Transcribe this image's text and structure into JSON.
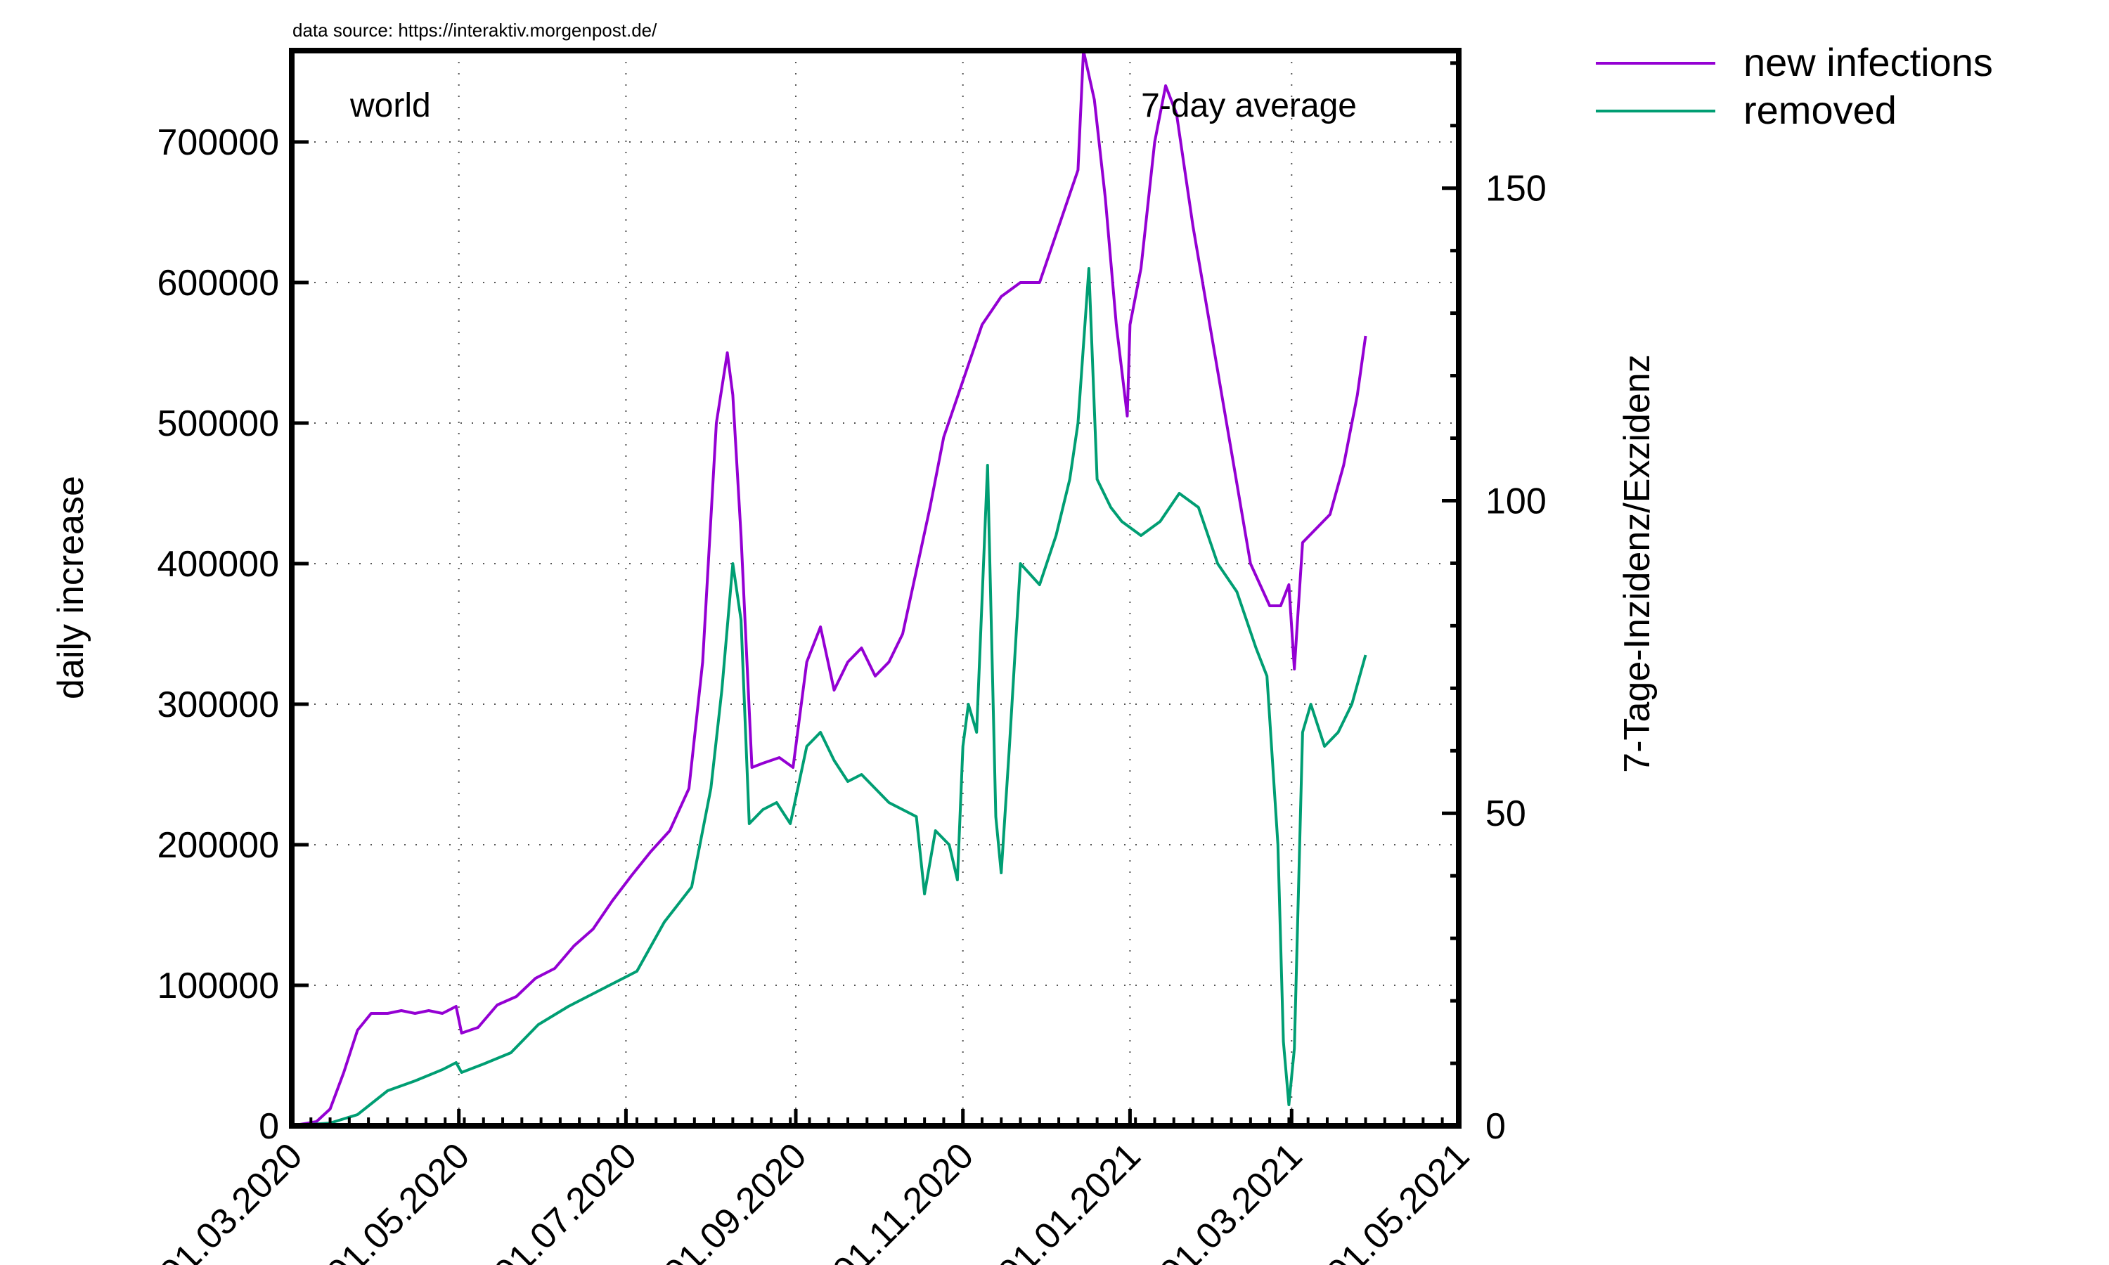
{
  "source_note": "data source: https://interaktiv.morgenpost.de/",
  "chart_data": {
    "type": "line",
    "region_label": "world",
    "average_label": "7-day average",
    "ylabel": "daily increase",
    "y2label": "7-Tage-Inzidenz/Exzidenz",
    "ylim": [
      0,
      765000
    ],
    "y2lim": [
      0,
      172
    ],
    "yticks": [
      0,
      100000,
      200000,
      300000,
      400000,
      500000,
      600000,
      700000
    ],
    "y2ticks": [
      0,
      50,
      100,
      150
    ],
    "xlim": [
      "01.03.2020",
      "01.05.2021"
    ],
    "xticks": [
      "01.03.2020",
      "01.05.2020",
      "01.07.2020",
      "01.09.2020",
      "01.11.2020",
      "01.01.2021",
      "01.03.2021",
      "01.05.2021"
    ],
    "grid": true,
    "legend_position": "outside top-right",
    "series": [
      {
        "name": "new infections",
        "color": "#9400d3",
        "x": [
          "2020-03-01",
          "2020-03-10",
          "2020-03-15",
          "2020-03-20",
          "2020-03-25",
          "2020-03-30",
          "2020-04-05",
          "2020-04-10",
          "2020-04-15",
          "2020-04-20",
          "2020-04-25",
          "2020-04-30",
          "2020-05-02",
          "2020-05-08",
          "2020-05-15",
          "2020-05-22",
          "2020-05-29",
          "2020-06-05",
          "2020-06-12",
          "2020-06-19",
          "2020-06-26",
          "2020-07-03",
          "2020-07-10",
          "2020-07-17",
          "2020-07-24",
          "2020-07-29",
          "2020-08-03",
          "2020-08-07",
          "2020-08-09",
          "2020-08-12",
          "2020-08-16",
          "2020-08-20",
          "2020-08-26",
          "2020-08-31",
          "2020-09-05",
          "2020-09-10",
          "2020-09-15",
          "2020-09-20",
          "2020-09-25",
          "2020-09-30",
          "2020-10-05",
          "2020-10-10",
          "2020-10-15",
          "2020-10-20",
          "2020-10-25",
          "2020-11-01",
          "2020-11-08",
          "2020-11-15",
          "2020-11-22",
          "2020-11-29",
          "2020-12-06",
          "2020-12-13",
          "2020-12-15",
          "2020-12-19",
          "2020-12-23",
          "2020-12-27",
          "2020-12-31",
          "2021-01-01",
          "2021-01-05",
          "2021-01-10",
          "2021-01-14",
          "2021-01-18",
          "2021-01-24",
          "2021-01-31",
          "2021-02-07",
          "2021-02-14",
          "2021-02-21",
          "2021-02-25",
          "2021-02-28",
          "2021-03-02",
          "2021-03-05",
          "2021-03-10",
          "2021-03-15",
          "2021-03-20",
          "2021-03-25",
          "2021-03-28"
        ],
        "values": [
          0,
          3000,
          12000,
          38000,
          68000,
          80000,
          80000,
          82000,
          80000,
          82000,
          80000,
          85000,
          66000,
          70000,
          86000,
          92000,
          105000,
          112000,
          128000,
          140000,
          160000,
          178000,
          195000,
          210000,
          240000,
          330000,
          500000,
          550000,
          520000,
          420000,
          255000,
          258000,
          262000,
          255000,
          330000,
          355000,
          310000,
          330000,
          340000,
          320000,
          330000,
          350000,
          395000,
          440000,
          490000,
          530000,
          570000,
          590000,
          600000,
          600000,
          640000,
          680000,
          765000,
          730000,
          660000,
          570000,
          505000,
          570000,
          610000,
          700000,
          740000,
          720000,
          640000,
          560000,
          480000,
          400000,
          370000,
          370000,
          385000,
          325000,
          415000,
          425000,
          435000,
          470000,
          520000,
          562000
        ]
      },
      {
        "name": "removed",
        "color": "#009e73",
        "x": [
          "2020-03-01",
          "2020-03-15",
          "2020-03-25",
          "2020-04-05",
          "2020-04-15",
          "2020-04-25",
          "2020-04-30",
          "2020-05-02",
          "2020-05-10",
          "2020-05-20",
          "2020-05-30",
          "2020-06-10",
          "2020-06-20",
          "2020-06-30",
          "2020-07-05",
          "2020-07-15",
          "2020-07-25",
          "2020-08-01",
          "2020-08-05",
          "2020-08-09",
          "2020-08-12",
          "2020-08-15",
          "2020-08-20",
          "2020-08-25",
          "2020-08-30",
          "2020-09-05",
          "2020-09-10",
          "2020-09-15",
          "2020-09-20",
          "2020-09-25",
          "2020-09-30",
          "2020-10-05",
          "2020-10-10",
          "2020-10-15",
          "2020-10-18",
          "2020-10-22",
          "2020-10-27",
          "2020-10-30",
          "2020-11-01",
          "2020-11-03",
          "2020-11-06",
          "2020-11-10",
          "2020-11-13",
          "2020-11-15",
          "2020-11-18",
          "2020-11-22",
          "2020-11-29",
          "2020-12-05",
          "2020-12-10",
          "2020-12-13",
          "2020-12-17",
          "2020-12-20",
          "2020-12-25",
          "2020-12-29",
          "2021-01-05",
          "2021-01-12",
          "2021-01-19",
          "2021-01-26",
          "2021-02-02",
          "2021-02-09",
          "2021-02-16",
          "2021-02-20",
          "2021-02-24",
          "2021-02-26",
          "2021-02-28",
          "2021-03-02",
          "2021-03-05",
          "2021-03-08",
          "2021-03-13",
          "2021-03-18",
          "2021-03-23",
          "2021-03-28"
        ],
        "values": [
          0,
          2000,
          8000,
          25000,
          32000,
          40000,
          45000,
          38000,
          44000,
          52000,
          72000,
          85000,
          95000,
          105000,
          110000,
          145000,
          170000,
          240000,
          310000,
          400000,
          360000,
          215000,
          225000,
          230000,
          215000,
          270000,
          280000,
          260000,
          245000,
          250000,
          240000,
          230000,
          225000,
          220000,
          165000,
          210000,
          200000,
          175000,
          270000,
          300000,
          280000,
          470000,
          220000,
          180000,
          270000,
          400000,
          385000,
          420000,
          460000,
          500000,
          610000,
          460000,
          440000,
          430000,
          420000,
          430000,
          450000,
          440000,
          400000,
          380000,
          340000,
          320000,
          200000,
          60000,
          15000,
          55000,
          280000,
          300000,
          270000,
          280000,
          300000,
          335000
        ]
      }
    ]
  }
}
